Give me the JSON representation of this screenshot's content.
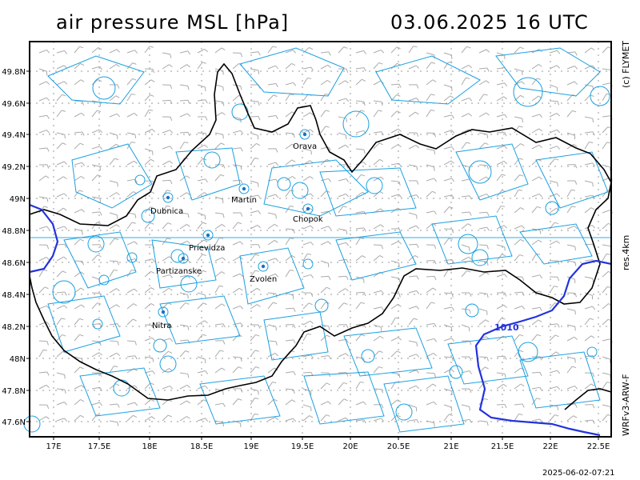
{
  "header": {
    "title": "air pressure MSL [hPa]",
    "datetime": "03.06.2025   16 UTC"
  },
  "side_labels": {
    "copyright": "(c) FLYMET",
    "resolution": "res.4km",
    "model": "WRFv3-ARW-F"
  },
  "footer": {
    "timestamp": "2025-06-02-07:21"
  },
  "axes": {
    "lat_labels": [
      "49.8N",
      "49.6N",
      "49.4N",
      "49.2N",
      "49N",
      "48.8N",
      "48.6N",
      "48.4N",
      "48.2N",
      "48N",
      "47.8N",
      "47.6N"
    ],
    "lon_labels": [
      "17E",
      "17.5E",
      "18E",
      "18.5E",
      "19E",
      "19.5E",
      "20E",
      "20.5E",
      "21E",
      "21.5E",
      "22E",
      "22.5E"
    ]
  },
  "isobar": {
    "label": "1010",
    "color": "#2233dd"
  },
  "colors": {
    "border": "#000000",
    "contours": "#1aa0e0",
    "wind_barbs": "#999999",
    "frame": "#000000"
  },
  "cities": [
    {
      "name": "Orava"
    },
    {
      "name": "Martin"
    },
    {
      "name": "Dubnica"
    },
    {
      "name": "Chopok"
    },
    {
      "name": "Prievidza"
    },
    {
      "name": "Partizanske"
    },
    {
      "name": "Zvolen"
    },
    {
      "name": "Nitra"
    }
  ]
}
